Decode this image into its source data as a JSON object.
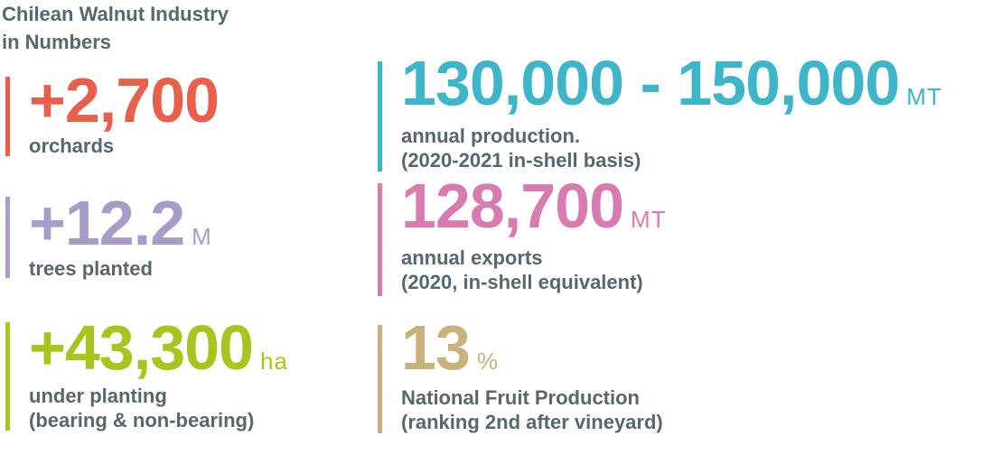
{
  "header": {
    "title_lines": [
      "Chilean Walnut Industry",
      "in Numbers"
    ]
  },
  "stats": [
    {
      "value": "+2,700",
      "unit": null,
      "description": [
        "orchards"
      ],
      "color": "#e8604c"
    },
    {
      "value": "+12.2",
      "unit": "M",
      "description": [
        "trees planted"
      ],
      "color": "#aa9cc6"
    },
    {
      "value": "+43,300",
      "unit": "ha",
      "description": [
        "under planting",
        "(bearing & non-bearing)"
      ],
      "color": "#a8c41e"
    },
    {
      "value": "130,000 - 150,000",
      "unit": "MT",
      "description": [
        "annual production.",
        "(2020-2021 in-shell basis)"
      ],
      "color": "#3eb5c8"
    },
    {
      "value": "128,700",
      "unit": "MT",
      "description": [
        "annual exports",
        "(2020, in-shell equivalent)"
      ],
      "color": "#d77bb1"
    },
    {
      "value": "13",
      "unit": "%",
      "description": [
        "National Fruit Production",
        "(ranking 2nd after vineyard)"
      ],
      "color": "#c9b17b"
    }
  ]
}
